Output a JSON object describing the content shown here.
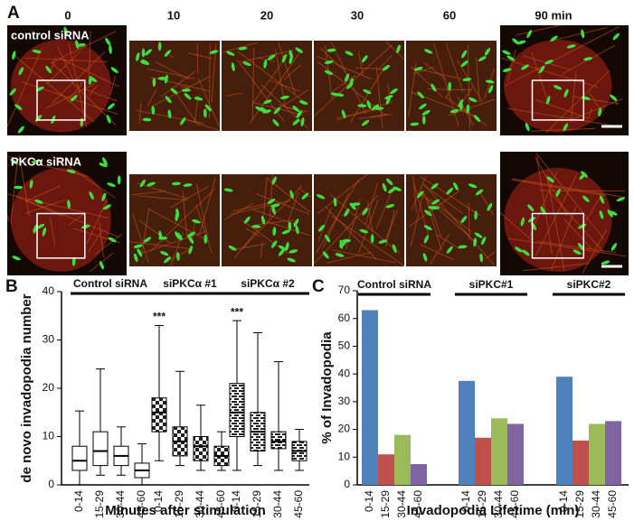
{
  "panel_a": {
    "label": "A",
    "times": [
      "0",
      "10",
      "20",
      "30",
      "60",
      "90 min"
    ],
    "rows": [
      "control siRNA",
      "PKCα siRNA"
    ]
  },
  "chart_data": [
    {
      "type": "box",
      "panel_label": "B",
      "y_label": "de novo invadopodia number",
      "x_label": "Minutes after stimulation",
      "ylim": [
        0,
        40
      ],
      "yticks": [
        0,
        10,
        20,
        30,
        40
      ],
      "groups": [
        {
          "name": "Control siRNA",
          "pattern": "none",
          "categories": [
            "0-14",
            "15-29",
            "30-44",
            "45-60"
          ],
          "boxes": [
            {
              "min": 0,
              "q1": 3,
              "median": 5,
              "q3": 8,
              "max": 15.3
            },
            {
              "min": 2,
              "q1": 4,
              "median": 7,
              "q3": 11,
              "max": 24
            },
            {
              "min": 2,
              "q1": 4,
              "median": 6,
              "q3": 8,
              "max": 12
            },
            {
              "min": 0,
              "q1": 1.5,
              "median": 3,
              "q3": 4.5,
              "max": 8.5
            }
          ]
        },
        {
          "name": "siPKCα #1",
          "pattern": "checker",
          "annotation": "***",
          "categories": [
            "0-14",
            "15-29",
            "30-44",
            "45-60"
          ],
          "boxes": [
            {
              "min": 5,
              "q1": 11,
              "median": 15,
              "q3": 18,
              "max": 33
            },
            {
              "min": 4,
              "q1": 6,
              "median": 9,
              "q3": 12,
              "max": 23.5
            },
            {
              "min": 3,
              "q1": 5,
              "median": 8,
              "q3": 10,
              "max": 16.5
            },
            {
              "min": 3,
              "q1": 4,
              "median": 6,
              "q3": 8,
              "max": 11
            }
          ]
        },
        {
          "name": "siPKCα #2",
          "pattern": "brick",
          "annotation": "***",
          "categories": [
            "0-14",
            "15-29",
            "30-44",
            "45-60"
          ],
          "boxes": [
            {
              "min": 3,
              "q1": 10,
              "median": 15,
              "q3": 21,
              "max": 34
            },
            {
              "min": 4,
              "q1": 7,
              "median": 11,
              "q3": 15,
              "max": 31.5
            },
            {
              "min": 3,
              "q1": 7.5,
              "median": 9,
              "q3": 11,
              "max": 25.5
            },
            {
              "min": 3,
              "q1": 5,
              "median": 7,
              "q3": 9,
              "max": 11.5
            }
          ]
        }
      ]
    },
    {
      "type": "bar",
      "panel_label": "C",
      "y_label": "% of Invadopodia",
      "x_label": "Invadopodia Lifetime (min)",
      "ylim": [
        0,
        70
      ],
      "yticks": [
        0,
        10,
        20,
        30,
        40,
        50,
        60,
        70
      ],
      "colors": [
        "#4f81bd",
        "#c0504d",
        "#9bbb59",
        "#8064a2"
      ],
      "groups": [
        {
          "name": "Control siRNA",
          "categories": [
            "0-14",
            "15-29",
            "30-44",
            "45-60"
          ],
          "values": [
            63,
            11,
            18,
            7.5
          ]
        },
        {
          "name": "siPKC#1",
          "categories": [
            "0-14",
            "15-29",
            "30-44",
            "45-60"
          ],
          "values": [
            37.5,
            17,
            24,
            22
          ]
        },
        {
          "name": "siPKC#2",
          "categories": [
            "0-14",
            "15-29",
            "30-44",
            "45-60"
          ],
          "values": [
            39,
            16,
            22,
            23
          ]
        }
      ]
    }
  ]
}
